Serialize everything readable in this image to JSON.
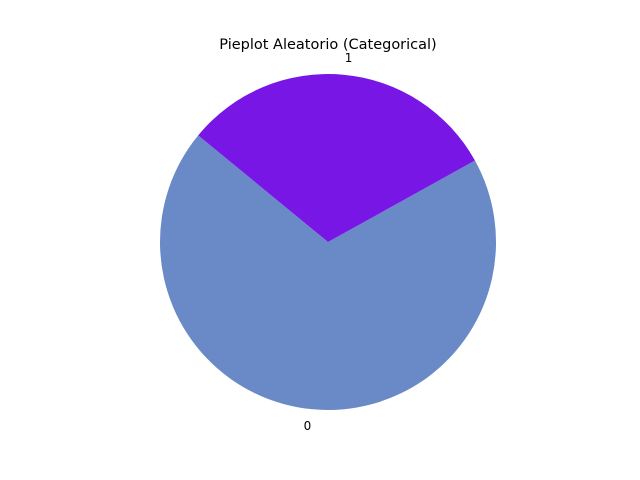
{
  "chart_data": {
    "type": "pie",
    "title": "Pieplot Aleatorio (Categorical)",
    "labels": [
      "0",
      "1"
    ],
    "values": [
      69,
      31
    ],
    "colors": [
      "#6a89c7",
      "#7816e6"
    ],
    "start_angle_deg": 140.6,
    "direction": "counterclockwise",
    "legend": "none"
  }
}
